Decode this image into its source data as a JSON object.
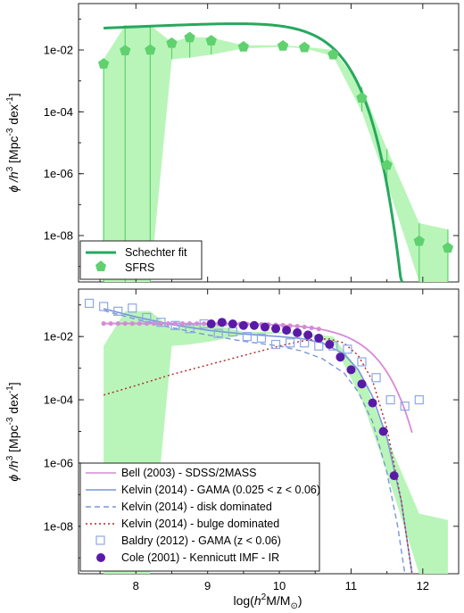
{
  "colors": {
    "sfrs_band": "#b9f5b9",
    "sfrs_marker": "#5fd16f",
    "schechter": "#27a85f",
    "bell": "#d68ad6",
    "kelvin": "#7a96d8",
    "kelvin_bulge": "#b52525",
    "baldry": "#8ea7e8",
    "cole": "#5a1aa8"
  },
  "xlabel_parts": [
    "log(",
    "h",
    "2",
    "M/M",
    "⊙",
    ")"
  ],
  "ylabel_parts": [
    "ϕ /",
    "h",
    "3",
    " [Mpc",
    "-3",
    " dex",
    "-1",
    "]"
  ],
  "chart_data": [
    {
      "type": "line",
      "panel": "top",
      "xlim": [
        7.2,
        12.5
      ],
      "ylim_log10": [
        -9.5,
        -0.5
      ],
      "xticks": [
        8,
        9,
        10,
        11,
        12
      ],
      "yticks": [
        {
          "log": -2,
          "label": "1e-02"
        },
        {
          "log": -4,
          "label": "1e-04"
        },
        {
          "log": -6,
          "label": "1e-06"
        },
        {
          "log": -8,
          "label": "1e-08"
        }
      ],
      "legend_position": "bottom-left",
      "legend": [
        "Schechter fit",
        "SFRS"
      ],
      "series": [
        {
          "name": "SFRS",
          "kind": "points-with-band",
          "x": [
            7.55,
            7.85,
            8.2,
            8.5,
            8.75,
            9.05,
            9.5,
            10.05,
            10.35,
            10.75,
            11.15,
            11.5,
            11.95,
            12.35
          ],
          "y_log10": [
            -2.45,
            -2.02,
            -2.0,
            -1.78,
            -1.6,
            -1.7,
            -1.9,
            -1.87,
            -1.92,
            -2.15,
            -3.55,
            -5.72,
            -8.18,
            -8.4
          ],
          "band_upper_log10": [
            -2.3,
            -1.2,
            -1.2,
            -1.75,
            -1.58,
            -1.6,
            -1.85,
            -1.85,
            -1.9,
            -2.0,
            -3.2,
            -5.2,
            -7.6,
            -7.8
          ],
          "band_lower_log10": [
            -9.5,
            -9.5,
            -9.5,
            -2.3,
            -2.25,
            -2.15,
            -1.95,
            -1.9,
            -1.95,
            -2.2,
            -4.0,
            -6.3,
            -9.5,
            -9.5
          ],
          "errbar_lower_log10": [
            -9.5,
            -9.5,
            -9.5,
            -2.3,
            -2.25,
            -2.15,
            -1.95,
            -1.9,
            -1.95,
            -2.2,
            -4.0,
            -6.3,
            -9.5,
            -9.5
          ]
        },
        {
          "name": "Schechter fit",
          "kind": "schechter",
          "x_range": [
            7.55,
            11.85
          ],
          "log_phi_star": -1.37,
          "log_m_star": 10.4,
          "alpha": -0.9
        }
      ]
    },
    {
      "type": "line",
      "panel": "bottom",
      "xlim": [
        7.2,
        12.5
      ],
      "ylim_log10": [
        -9.5,
        -0.5
      ],
      "xticks": [
        8,
        9,
        10,
        11,
        12
      ],
      "yticks": [
        {
          "log": -2,
          "label": "1e-02"
        },
        {
          "log": -4,
          "label": "1e-04"
        },
        {
          "log": -6,
          "label": "1e-06"
        },
        {
          "log": -8,
          "label": "1e-08"
        }
      ],
      "legend_position": "bottom-left",
      "legend": [
        "Bell (2003) - SDSS/2MASS",
        "Kelvin (2014) - GAMA (0.025 < z < 0.06)",
        "Kelvin (2014) - disk dominated",
        "Kelvin (2014) - bulge dominated",
        "Baldry (2012) - GAMA (z < 0.06)",
        "Cole (2001) - Kennicutt IMF - IR"
      ],
      "series": [
        {
          "name": "Bell (2003) - SDSS/2MASS",
          "kind": "schechter-with-markers",
          "x_range": [
            7.55,
            11.85
          ],
          "log_phi_star": -1.95,
          "log_m_star": 10.95,
          "alpha": -1.0,
          "marker_x_range": [
            7.55,
            10.6
          ],
          "marker_step": 0.1
        },
        {
          "name": "Kelvin (2014) - GAMA (0.025 < z < 0.06)",
          "kind": "curve",
          "x": [
            7.55,
            8.0,
            8.5,
            9.0,
            9.5,
            10.0,
            10.3,
            10.6,
            10.9,
            11.1,
            11.3,
            11.5,
            11.7,
            11.85
          ],
          "y_log10": [
            -1.12,
            -1.38,
            -1.62,
            -1.8,
            -1.92,
            -2.0,
            -2.06,
            -2.2,
            -2.55,
            -3.05,
            -3.9,
            -5.2,
            -7.2,
            -9.5
          ]
        },
        {
          "name": "Kelvin (2014) - disk dominated",
          "kind": "curve",
          "x": [
            7.55,
            8.0,
            8.5,
            9.0,
            9.5,
            10.0,
            10.3,
            10.6,
            10.9,
            11.1,
            11.3,
            11.5,
            11.65,
            11.75
          ],
          "y_log10": [
            -1.18,
            -1.45,
            -1.72,
            -1.95,
            -2.15,
            -2.3,
            -2.45,
            -2.7,
            -3.15,
            -3.75,
            -4.7,
            -6.3,
            -8.0,
            -9.5
          ]
        },
        {
          "name": "Kelvin (2014) - bulge dominated",
          "kind": "curve",
          "x": [
            7.55,
            8.0,
            8.5,
            9.0,
            9.5,
            10.0,
            10.3,
            10.5,
            10.7,
            10.9,
            11.1,
            11.3,
            11.5,
            11.7,
            11.85
          ],
          "y_log10": [
            -3.85,
            -3.55,
            -3.2,
            -2.9,
            -2.6,
            -2.3,
            -2.15,
            -2.08,
            -2.08,
            -2.2,
            -2.6,
            -3.4,
            -4.9,
            -7.2,
            -9.5
          ]
        },
        {
          "name": "Baldry (2012) - GAMA (z < 0.06)",
          "kind": "points",
          "x": [
            7.35,
            7.55,
            7.75,
            7.95,
            8.15,
            8.35,
            8.55,
            8.75,
            8.95,
            9.15,
            9.35,
            9.55,
            9.75,
            9.95,
            10.15,
            10.35,
            10.55,
            10.75,
            10.95,
            11.15,
            11.35,
            11.55,
            11.75,
            11.95
          ],
          "y_log10": [
            -0.95,
            -1.05,
            -1.2,
            -1.1,
            -1.4,
            -1.55,
            -1.65,
            -1.75,
            -1.6,
            -1.9,
            -1.85,
            -2.0,
            -2.05,
            -2.25,
            -2.2,
            -2.2,
            -2.3,
            -2.3,
            -2.4,
            -2.8,
            -3.3,
            -4.0,
            -4.2,
            -4.0
          ]
        },
        {
          "name": "Cole (2001) - Kennicutt IMF - IR",
          "kind": "points",
          "x": [
            9.05,
            9.2,
            9.35,
            9.5,
            9.65,
            9.8,
            9.95,
            10.1,
            10.25,
            10.4,
            10.55,
            10.7,
            10.85,
            11.0,
            11.15,
            11.3,
            11.45,
            11.6
          ],
          "y_log10": [
            -1.6,
            -1.55,
            -1.6,
            -1.65,
            -1.65,
            -1.7,
            -1.75,
            -1.8,
            -1.88,
            -1.95,
            -2.05,
            -2.25,
            -2.65,
            -3.05,
            -3.5,
            -4.1,
            -5.0,
            -6.4
          ]
        },
        {
          "name": "SFRS",
          "kind": "band",
          "x": [
            7.55,
            7.85,
            8.2,
            8.5,
            8.75,
            9.05,
            9.5,
            10.05,
            10.35,
            10.75,
            11.15,
            11.5,
            11.95,
            12.35
          ],
          "band_upper_log10": [
            -2.3,
            -1.2,
            -1.2,
            -1.75,
            -1.58,
            -1.6,
            -1.85,
            -1.85,
            -1.9,
            -2.0,
            -3.2,
            -5.2,
            -7.6,
            -7.8
          ],
          "band_lower_log10": [
            -9.5,
            -9.5,
            -9.5,
            -2.3,
            -2.25,
            -2.15,
            -1.95,
            -1.9,
            -1.95,
            -2.2,
            -4.0,
            -6.3,
            -9.5,
            -9.5
          ]
        }
      ]
    }
  ]
}
